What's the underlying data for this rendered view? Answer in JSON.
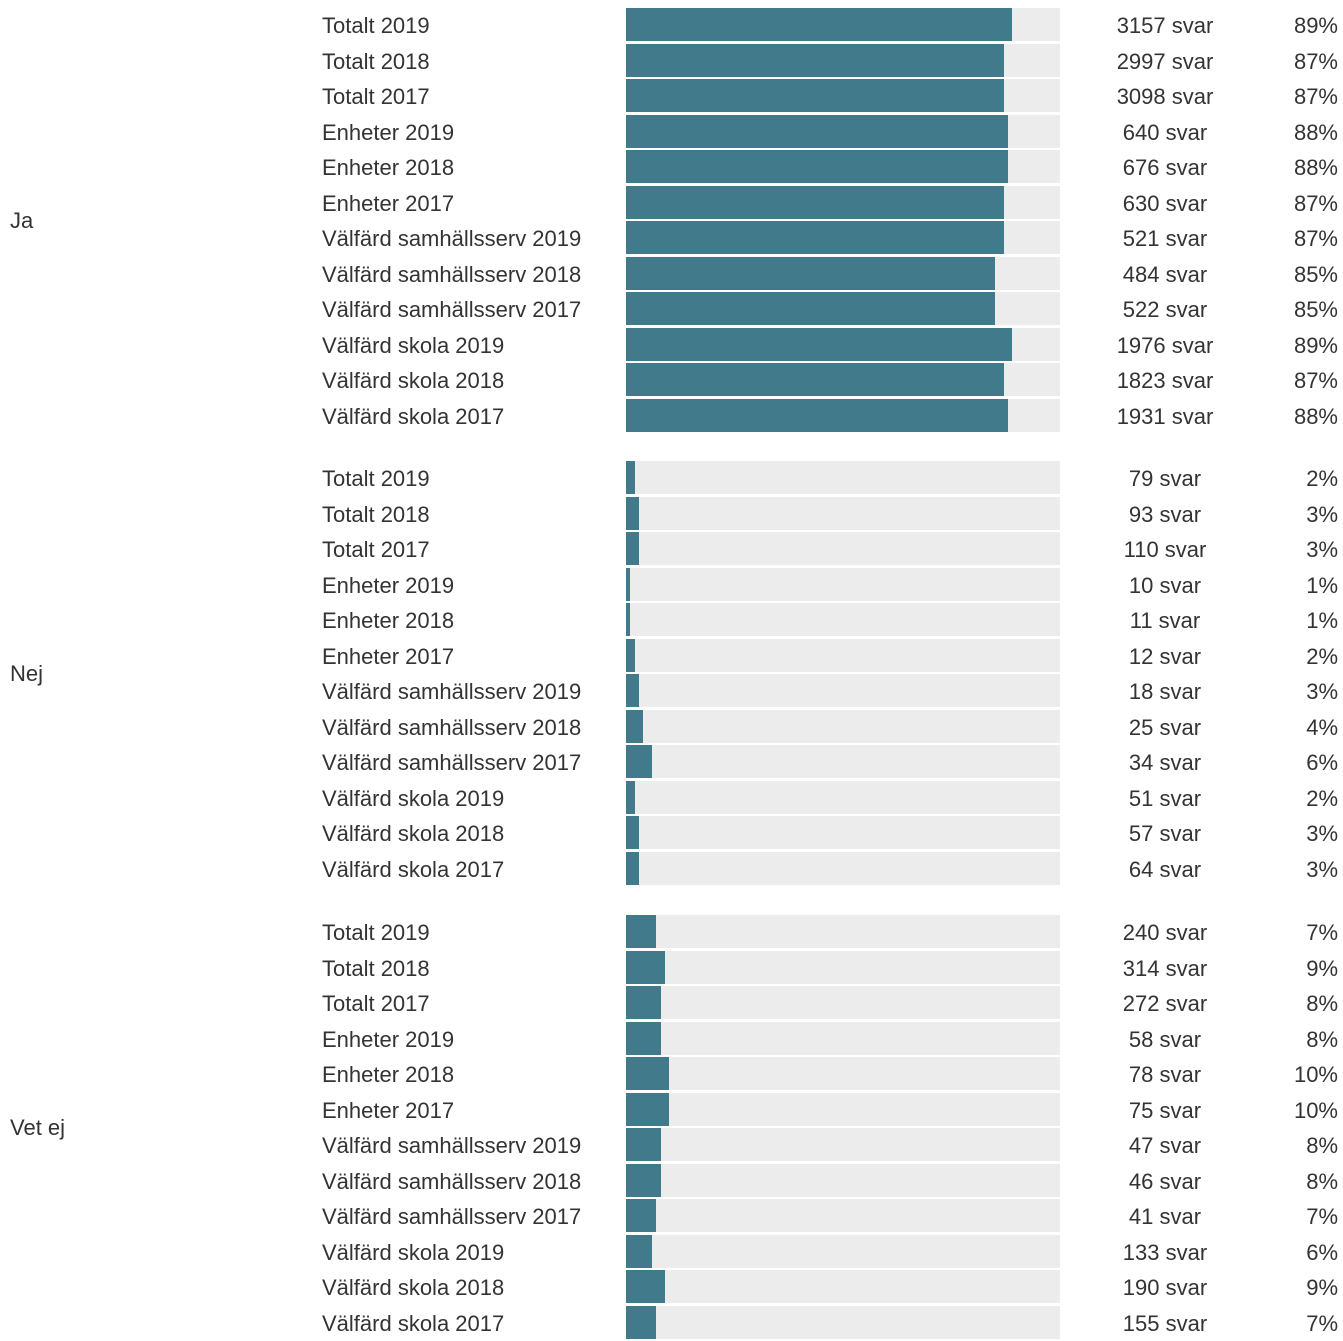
{
  "chart_data": {
    "type": "bar",
    "orientation": "horizontal",
    "xlim": [
      0,
      100
    ],
    "colors": {
      "bar": "#417b8b",
      "track": "#ececec"
    },
    "groups": [
      {
        "label": "Ja",
        "rows": [
          {
            "label": "Totalt 2019",
            "count": "3157 svar",
            "pct": "89%",
            "value": 89
          },
          {
            "label": "Totalt 2018",
            "count": "2997 svar",
            "pct": "87%",
            "value": 87
          },
          {
            "label": "Totalt 2017",
            "count": "3098 svar",
            "pct": "87%",
            "value": 87
          },
          {
            "label": "Enheter 2019",
            "count": "640 svar",
            "pct": "88%",
            "value": 88
          },
          {
            "label": "Enheter 2018",
            "count": "676 svar",
            "pct": "88%",
            "value": 88
          },
          {
            "label": "Enheter 2017",
            "count": "630 svar",
            "pct": "87%",
            "value": 87
          },
          {
            "label": "Välfärd samhällsserv 2019",
            "count": "521 svar",
            "pct": "87%",
            "value": 87
          },
          {
            "label": "Välfärd samhällsserv 2018",
            "count": "484 svar",
            "pct": "85%",
            "value": 85
          },
          {
            "label": "Välfärd samhällsserv 2017",
            "count": "522 svar",
            "pct": "85%",
            "value": 85
          },
          {
            "label": "Välfärd skola 2019",
            "count": "1976 svar",
            "pct": "89%",
            "value": 89
          },
          {
            "label": "Välfärd skola 2018",
            "count": "1823 svar",
            "pct": "87%",
            "value": 87
          },
          {
            "label": "Välfärd skola 2017",
            "count": "1931 svar",
            "pct": "88%",
            "value": 88
          }
        ]
      },
      {
        "label": "Nej",
        "rows": [
          {
            "label": "Totalt 2019",
            "count": "79 svar",
            "pct": "2%",
            "value": 2
          },
          {
            "label": "Totalt 2018",
            "count": "93 svar",
            "pct": "3%",
            "value": 3
          },
          {
            "label": "Totalt 2017",
            "count": "110 svar",
            "pct": "3%",
            "value": 3
          },
          {
            "label": "Enheter 2019",
            "count": "10 svar",
            "pct": "1%",
            "value": 1
          },
          {
            "label": "Enheter 2018",
            "count": "11 svar",
            "pct": "1%",
            "value": 1
          },
          {
            "label": "Enheter 2017",
            "count": "12 svar",
            "pct": "2%",
            "value": 2
          },
          {
            "label": "Välfärd samhällsserv 2019",
            "count": "18 svar",
            "pct": "3%",
            "value": 3
          },
          {
            "label": "Välfärd samhällsserv 2018",
            "count": "25 svar",
            "pct": "4%",
            "value": 4
          },
          {
            "label": "Välfärd samhällsserv 2017",
            "count": "34 svar",
            "pct": "6%",
            "value": 6
          },
          {
            "label": "Välfärd skola 2019",
            "count": "51 svar",
            "pct": "2%",
            "value": 2
          },
          {
            "label": "Välfärd skola 2018",
            "count": "57 svar",
            "pct": "3%",
            "value": 3
          },
          {
            "label": "Välfärd skola 2017",
            "count": "64 svar",
            "pct": "3%",
            "value": 3
          }
        ]
      },
      {
        "label": "Vet ej",
        "rows": [
          {
            "label": "Totalt 2019",
            "count": "240 svar",
            "pct": "7%",
            "value": 7
          },
          {
            "label": "Totalt 2018",
            "count": "314 svar",
            "pct": "9%",
            "value": 9
          },
          {
            "label": "Totalt 2017",
            "count": "272 svar",
            "pct": "8%",
            "value": 8
          },
          {
            "label": "Enheter 2019",
            "count": "58 svar",
            "pct": "8%",
            "value": 8
          },
          {
            "label": "Enheter 2018",
            "count": "78 svar",
            "pct": "10%",
            "value": 10
          },
          {
            "label": "Enheter 2017",
            "count": "75 svar",
            "pct": "10%",
            "value": 10
          },
          {
            "label": "Välfärd samhällsserv 2019",
            "count": "47 svar",
            "pct": "8%",
            "value": 8
          },
          {
            "label": "Välfärd samhällsserv 2018",
            "count": "46 svar",
            "pct": "8%",
            "value": 8
          },
          {
            "label": "Välfärd samhällsserv 2017",
            "count": "41 svar",
            "pct": "7%",
            "value": 7
          },
          {
            "label": "Välfärd skola 2019",
            "count": "133 svar",
            "pct": "6%",
            "value": 6
          },
          {
            "label": "Välfärd skola 2018",
            "count": "190 svar",
            "pct": "9%",
            "value": 9
          },
          {
            "label": "Välfärd skola 2017",
            "count": "155 svar",
            "pct": "7%",
            "value": 7
          }
        ]
      }
    ]
  }
}
